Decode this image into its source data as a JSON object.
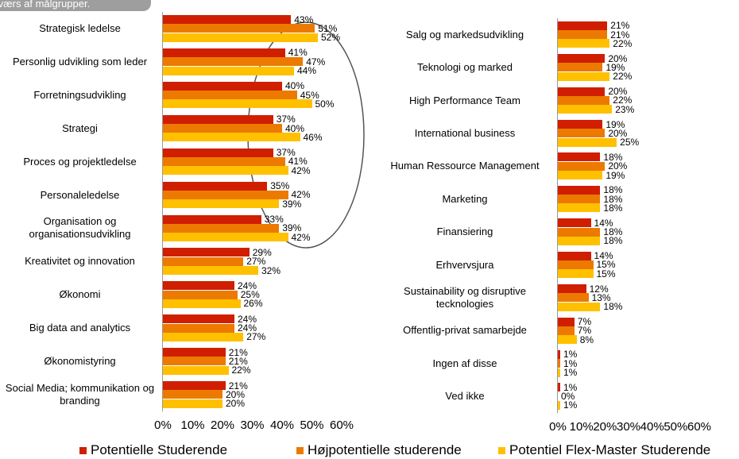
{
  "annotation": "tværs af målgrupper.",
  "chart_data": [
    {
      "type": "hbar",
      "categories": [
        "Strategisk ledelse",
        "Personlig udvikling som leder",
        "Forretningsudvikling",
        "Strategi",
        "Proces og projektledelse",
        "Personaleledelse",
        "Organisation og organisationsudvikling",
        "Kreativitet og innovation",
        "Økonomi",
        "Big data and analytics",
        "Økonomistyring",
        "Social Media; kommunikation og branding"
      ],
      "series": [
        {
          "name": "Potentielle Studerende",
          "color": "#d01e00",
          "values": [
            43,
            41,
            40,
            37,
            37,
            35,
            33,
            29,
            24,
            24,
            21,
            21
          ],
          "value_labels": [
            "43%",
            "41%",
            "40%",
            "37%",
            "37%",
            "35%",
            "33%",
            "29%",
            "24%",
            "24%",
            "21%",
            "21%"
          ]
        },
        {
          "name": "Højpotentielle studerende",
          "color": "#ec7a00",
          "values": [
            51,
            47,
            45,
            40,
            41,
            42,
            39,
            27,
            25,
            24,
            21,
            20
          ],
          "value_labels": [
            "51%",
            "47%",
            "45%",
            "40%",
            "41%",
            "42%",
            "39%",
            "27%",
            "25%",
            "24%",
            "21%",
            "20%"
          ]
        },
        {
          "name": "Potentiel Flex-Master Studerende",
          "color": "#ffc000",
          "values": [
            52,
            44,
            50,
            46,
            42,
            39,
            42,
            32,
            26,
            27,
            22,
            20
          ],
          "value_labels": [
            "52%",
            "44%",
            "50%",
            "46%",
            "42%",
            "39%",
            "42%",
            "32%",
            "26%",
            "27%",
            "22%",
            "20%"
          ]
        }
      ],
      "xlim": [
        0,
        60
      ],
      "xticks": [
        {
          "value": 0,
          "label": "0%"
        },
        {
          "value": 10,
          "label": "10%"
        },
        {
          "value": 20,
          "label": "20%"
        },
        {
          "value": 30,
          "label": "30%"
        },
        {
          "value": 40,
          "label": "40%"
        },
        {
          "value": 50,
          "label": "50%"
        },
        {
          "value": 60,
          "label": "60%"
        }
      ]
    },
    {
      "type": "hbar",
      "categories": [
        "Salg og markedsudvikling",
        "Teknologi og marked",
        "High Performance Team",
        "International business",
        "Human Ressource Management",
        "Marketing",
        "Finansiering",
        "Erhvervsjura",
        "Sustainability og disruptive tecknologies",
        "Offentlig-privat samarbejde",
        "Ingen af disse",
        "Ved ikke"
      ],
      "series": [
        {
          "color": "#d01e00",
          "values": [
            21,
            20,
            20,
            19,
            18,
            18,
            14,
            14,
            12,
            7,
            1,
            1
          ],
          "value_labels": [
            "21%",
            "20%",
            "20%",
            "19%",
            "18%",
            "18%",
            "14%",
            "14%",
            "12%",
            "7%",
            "1%",
            "1%"
          ]
        },
        {
          "color": "#ec7a00",
          "values": [
            21,
            19,
            22,
            20,
            20,
            18,
            18,
            15,
            13,
            7,
            1,
            0
          ],
          "value_labels": [
            "21%",
            "19%",
            "22%",
            "20%",
            "20%",
            "18%",
            "18%",
            "15%",
            "13%",
            "7%",
            "1%",
            "0%"
          ]
        },
        {
          "color": "#ffc000",
          "values": [
            22,
            22,
            23,
            25,
            19,
            18,
            18,
            15,
            18,
            8,
            1,
            1
          ],
          "value_labels": [
            "22%",
            "22%",
            "23%",
            "25%",
            "19%",
            "18%",
            "18%",
            "15%",
            "18%",
            "8%",
            "1%",
            "1%"
          ]
        }
      ],
      "xlim": [
        0,
        60
      ],
      "xticks": [
        {
          "value": 0,
          "label": "0%"
        },
        {
          "value": 10,
          "label": "10%"
        },
        {
          "value": 20,
          "label": "20%"
        },
        {
          "value": 30,
          "label": "30%"
        },
        {
          "value": 40,
          "label": "40%"
        },
        {
          "value": 50,
          "label": "50%"
        },
        {
          "value": 60,
          "label": "60%"
        }
      ]
    }
  ]
}
